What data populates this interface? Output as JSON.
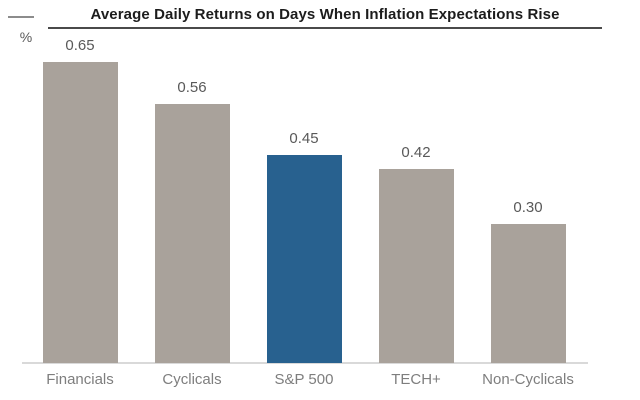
{
  "chart_data": {
    "type": "bar",
    "title": "Average Daily Returns on Days When Inflation Expectations Rise",
    "unit_label": "%",
    "categories": [
      "Financials",
      "Cyclicals",
      "S&P 500",
      "TECH+",
      "Non-Cyclicals"
    ],
    "values": [
      0.65,
      0.56,
      0.45,
      0.42,
      0.3
    ],
    "value_labels": [
      "0.65",
      "0.56",
      "0.45",
      "0.42",
      "0.30"
    ],
    "highlight_category": "S&P 500",
    "highlight_index": 2,
    "ylim": [
      0,
      0.7
    ],
    "grid": false,
    "legend": false,
    "colors": {
      "bar_default": "#a9a29b",
      "bar_highlight": "#28618f",
      "title_text": "#1c1c1c",
      "title_rule": "#4a4a4a",
      "value_label": "#595959",
      "category_label": "#7e7e7e",
      "baseline": "#d9d9d9",
      "background": "#ffffff"
    }
  }
}
